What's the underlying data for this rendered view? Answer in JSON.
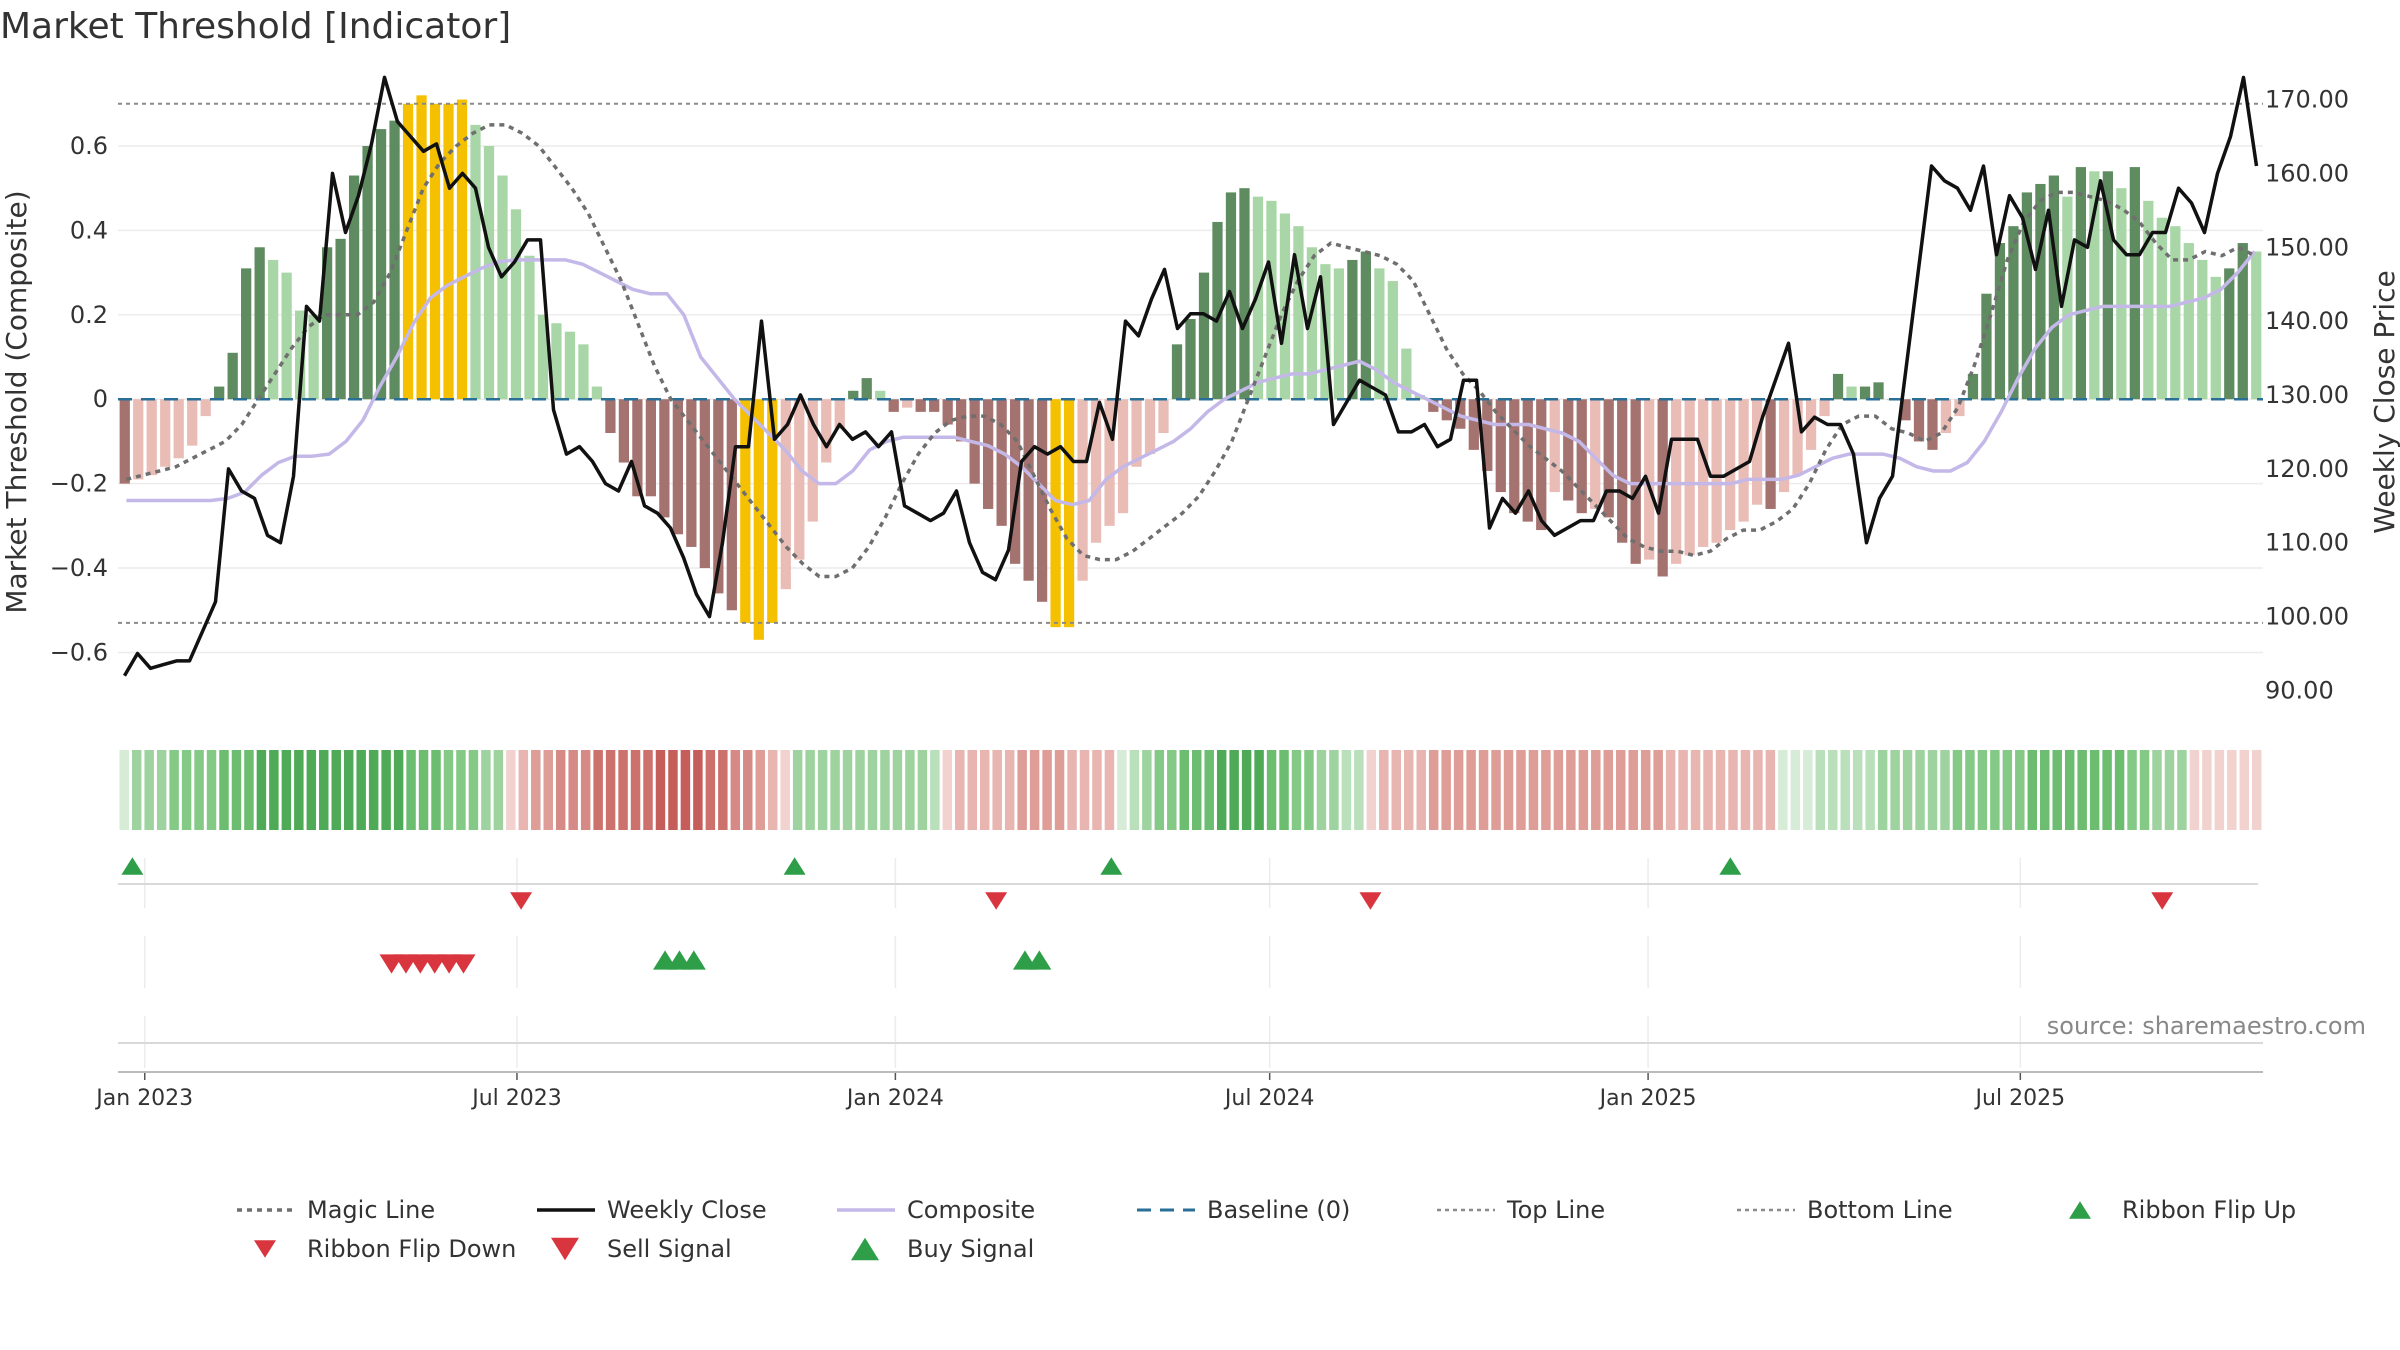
{
  "chart_data": {
    "type": "bar",
    "title": "Market Threshold [Indicator]",
    "ylabel_left": "Market Threshold (Composite)",
    "ylabel_right": "Weekly Close Price",
    "source": "source: sharemaestro.com",
    "ylim_left": [
      -0.76,
      0.78
    ],
    "ylim_right": [
      86,
      174
    ],
    "yticks_left": [
      {
        "v": 0.6,
        "label": "0.6"
      },
      {
        "v": 0.4,
        "label": "0.4"
      },
      {
        "v": 0.2,
        "label": "0.2"
      },
      {
        "v": 0,
        "label": "0"
      },
      {
        "v": -0.2,
        "label": "−0.2"
      },
      {
        "v": -0.4,
        "label": "−0.4"
      },
      {
        "v": -0.6,
        "label": "−0.6"
      }
    ],
    "yticks_right": [
      "90.00",
      "100.00",
      "110.00",
      "120.00",
      "130.00",
      "140.00",
      "150.00",
      "160.00",
      "170.00"
    ],
    "x_start": "2022-12-19",
    "x_end": "2025-10-27",
    "xticks": [
      {
        "date": "2023-01-01",
        "label": "Jan 2023"
      },
      {
        "date": "2023-07-01",
        "label": "Jul 2023"
      },
      {
        "date": "2024-01-01",
        "label": "Jan 2024"
      },
      {
        "date": "2024-07-01",
        "label": "Jul 2024"
      },
      {
        "date": "2025-01-01",
        "label": "Jan 2025"
      },
      {
        "date": "2025-07-01",
        "label": "Jul 2025"
      }
    ],
    "top_line": 0.7,
    "bottom_line": -0.53,
    "composite": [
      -0.24,
      -0.24,
      -0.24,
      -0.24,
      -0.24,
      -0.24,
      -0.235,
      -0.22,
      -0.18,
      -0.15,
      -0.135,
      -0.135,
      -0.13,
      -0.1,
      -0.05,
      0.03,
      0.1,
      0.18,
      0.24,
      0.27,
      0.29,
      0.31,
      0.325,
      0.33,
      0.33,
      0.33,
      0.33,
      0.32,
      0.3,
      0.28,
      0.26,
      0.25,
      0.25,
      0.2,
      0.1,
      0.05,
      0,
      -0.04,
      -0.08,
      -0.12,
      -0.17,
      -0.2,
      -0.2,
      -0.17,
      -0.12,
      -0.1,
      -0.09,
      -0.09,
      -0.09,
      -0.09,
      -0.1,
      -0.11,
      -0.13,
      -0.16,
      -0.2,
      -0.24,
      -0.25,
      -0.24,
      -0.19,
      -0.16,
      -0.14,
      -0.12,
      -0.1,
      -0.07,
      -0.03,
      0,
      0.02,
      0.04,
      0.05,
      0.06,
      0.06,
      0.07,
      0.08,
      0.09,
      0.07,
      0.04,
      0.02,
      0,
      -0.02,
      -0.04,
      -0.05,
      -0.06,
      -0.06,
      -0.06,
      -0.07,
      -0.08,
      -0.1,
      -0.14,
      -0.18,
      -0.2,
      -0.2,
      -0.2,
      -0.2,
      -0.2,
      -0.2,
      -0.2,
      -0.19,
      -0.19,
      -0.19,
      -0.18,
      -0.16,
      -0.14,
      -0.13,
      -0.13,
      -0.13,
      -0.14,
      -0.16,
      -0.17,
      -0.17,
      -0.15,
      -0.1,
      -0.03,
      0.05,
      0.12,
      0.17,
      0.2,
      0.21,
      0.22,
      0.22,
      0.22,
      0.22,
      0.22,
      0.23,
      0.24,
      0.26,
      0.3,
      0.35
    ],
    "close": [
      92,
      95,
      93,
      93.5,
      94,
      94,
      98,
      102,
      120,
      117,
      116,
      111,
      110,
      119,
      142,
      140,
      160,
      152,
      157,
      164,
      173,
      167,
      165,
      163,
      164,
      158,
      160,
      158,
      150,
      146,
      148,
      151,
      151,
      128,
      122,
      123,
      121,
      118,
      117,
      121,
      115,
      114,
      112,
      108,
      103,
      100,
      110,
      123,
      123,
      140,
      124,
      126,
      130,
      126,
      123,
      126,
      124,
      125,
      123,
      125,
      115,
      114,
      113,
      114,
      117,
      110,
      106,
      105,
      109,
      121,
      123,
      122,
      123,
      121,
      121,
      129,
      124,
      140,
      138,
      143,
      147,
      139,
      141,
      141,
      140,
      144,
      139,
      143,
      148,
      137,
      149,
      139,
      146,
      126,
      129,
      132,
      131,
      130,
      125,
      125,
      126,
      123,
      124,
      132,
      132,
      112,
      116,
      114,
      117,
      113,
      111,
      112,
      113,
      113,
      117,
      117,
      116,
      119,
      114,
      124,
      124,
      124,
      119,
      119,
      120,
      121,
      127,
      132,
      137,
      125,
      127,
      126,
      126,
      122,
      110,
      116,
      119,
      133,
      147,
      161,
      159,
      158,
      155,
      161,
      149,
      157,
      154,
      147,
      155,
      142,
      151,
      150,
      159,
      151,
      149,
      149,
      152,
      152,
      158,
      156,
      152,
      160,
      165,
      173,
      161
    ],
    "magic_line": [
      -0.19,
      -0.18,
      -0.17,
      -0.16,
      -0.14,
      -0.12,
      -0.1,
      -0.06,
      0,
      0.06,
      0.12,
      0.17,
      0.2,
      0.2,
      0.2,
      0.23,
      0.3,
      0.4,
      0.5,
      0.56,
      0.6,
      0.63,
      0.65,
      0.65,
      0.63,
      0.6,
      0.55,
      0.5,
      0.44,
      0.36,
      0.28,
      0.18,
      0.08,
      0,
      -0.05,
      -0.1,
      -0.15,
      -0.2,
      -0.25,
      -0.3,
      -0.35,
      -0.39,
      -0.42,
      -0.42,
      -0.4,
      -0.35,
      -0.28,
      -0.2,
      -0.13,
      -0.08,
      -0.05,
      -0.04,
      -0.04,
      -0.06,
      -0.1,
      -0.18,
      -0.26,
      -0.33,
      -0.37,
      -0.38,
      -0.38,
      -0.36,
      -0.33,
      -0.3,
      -0.27,
      -0.23,
      -0.17,
      -0.1,
      0,
      0.1,
      0.2,
      0.28,
      0.34,
      0.37,
      0.36,
      0.35,
      0.34,
      0.32,
      0.28,
      0.2,
      0.12,
      0.06,
      0.02,
      -0.03,
      -0.07,
      -0.11,
      -0.14,
      -0.17,
      -0.21,
      -0.25,
      -0.29,
      -0.33,
      -0.35,
      -0.36,
      -0.36,
      -0.37,
      -0.36,
      -0.33,
      -0.31,
      -0.31,
      -0.29,
      -0.26,
      -0.2,
      -0.12,
      -0.06,
      -0.04,
      -0.04,
      -0.07,
      -0.08,
      -0.1,
      -0.08,
      -0.02,
      0.08,
      0.2,
      0.33,
      0.42,
      0.47,
      0.49,
      0.49,
      0.48,
      0.47,
      0.45,
      0.42,
      0.37,
      0.33,
      0.33,
      0.35,
      0.34,
      0.36,
      0.34
    ],
    "bars": [
      -0.2,
      -0.19,
      -0.18,
      -0.16,
      -0.14,
      -0.11,
      -0.04,
      0.03,
      0.11,
      0.31,
      0.36,
      0.33,
      0.3,
      0.21,
      0.2,
      0.36,
      0.38,
      0.53,
      0.6,
      0.64,
      0.66,
      0.7,
      0.72,
      0.7,
      0.7,
      0.71,
      0.65,
      0.6,
      0.53,
      0.45,
      0.34,
      0.2,
      0.18,
      0.16,
      0.13,
      0.03,
      -0.08,
      -0.15,
      -0.23,
      -0.23,
      -0.28,
      -0.32,
      -0.35,
      -0.4,
      -0.46,
      -0.5,
      -0.53,
      -0.57,
      -0.53,
      -0.45,
      -0.38,
      -0.29,
      -0.15,
      -0.07,
      0.02,
      0.05,
      0.02,
      -0.03,
      -0.02,
      -0.03,
      -0.03,
      -0.06,
      -0.1,
      -0.2,
      -0.26,
      -0.3,
      -0.39,
      -0.43,
      -0.48,
      -0.54,
      -0.54,
      -0.43,
      -0.34,
      -0.3,
      -0.27,
      -0.16,
      -0.13,
      -0.08,
      0.13,
      0.19,
      0.3,
      0.42,
      0.49,
      0.5,
      0.48,
      0.47,
      0.44,
      0.41,
      0.36,
      0.32,
      0.31,
      0.33,
      0.35,
      0.31,
      0.28,
      0.12,
      0.01,
      -0.03,
      -0.05,
      -0.07,
      -0.12,
      -0.17,
      -0.22,
      -0.27,
      -0.29,
      -0.31,
      -0.22,
      -0.24,
      -0.27,
      -0.26,
      -0.28,
      -0.34,
      -0.39,
      -0.38,
      -0.42,
      -0.39,
      -0.37,
      -0.35,
      -0.34,
      -0.31,
      -0.29,
      -0.25,
      -0.26,
      -0.22,
      -0.18,
      -0.12,
      -0.04,
      0.06,
      0.03,
      0.03,
      0.04,
      0,
      -0.05,
      -0.1,
      -0.12,
      -0.08,
      -0.04,
      0.06,
      0.25,
      0.37,
      0.41,
      0.49,
      0.51,
      0.53,
      0.48,
      0.55,
      0.54,
      0.54,
      0.5,
      0.55,
      0.47,
      0.43,
      0.41,
      0.37,
      0.33,
      0.29,
      0.31,
      0.37,
      0.35
    ],
    "ribbon_levels": [
      1,
      3,
      3,
      3,
      4,
      4,
      4,
      4,
      5,
      5,
      5,
      6,
      6,
      6,
      6,
      6,
      6,
      6,
      6,
      6,
      6,
      6,
      6,
      5,
      5,
      5,
      4,
      4,
      4,
      3,
      3,
      -1,
      -2,
      -3,
      -3,
      -4,
      -4,
      -4,
      -5,
      -5,
      -5,
      -5,
      -5,
      -6,
      -6,
      -6,
      -6,
      -5,
      -5,
      -4,
      -4,
      -3,
      -2,
      -1,
      3,
      3,
      3,
      3,
      3,
      3,
      3,
      3,
      3,
      3,
      3,
      2,
      -1,
      -2,
      -2,
      -2,
      -2,
      -2,
      -3,
      -3,
      -3,
      -3,
      -2,
      -2,
      -2,
      -2,
      1,
      2,
      3,
      4,
      4,
      5,
      5,
      5,
      6,
      6,
      6,
      6,
      5,
      5,
      4,
      4,
      3,
      3,
      2,
      2,
      -1,
      -2,
      -2,
      -2,
      -2,
      -3,
      -3,
      -3,
      -3,
      -3,
      -3,
      -3,
      -3,
      -3,
      -3,
      -3,
      -3,
      -3,
      -3,
      -3,
      -3,
      -3,
      -3,
      -3,
      -2,
      -2,
      -2,
      -2,
      -2,
      -2,
      -2,
      -2,
      -2,
      1,
      1,
      1,
      2,
      2,
      2,
      2,
      2,
      3,
      3,
      3,
      3,
      3,
      3,
      4,
      4,
      4,
      4,
      4,
      4,
      5,
      5,
      5,
      5,
      5,
      5,
      5,
      5,
      4,
      4,
      3,
      3,
      3,
      -1,
      -1,
      -1,
      -1,
      -1,
      -1
    ],
    "ribbon_flip_up": [
      "2022-12-26",
      "2023-11-13",
      "2024-04-15",
      "2025-02-10"
    ],
    "ribbon_flip_down": [
      "2023-07-03",
      "2024-02-19",
      "2024-08-19",
      "2025-09-08"
    ],
    "sell_signals": [
      "2023-05-01",
      "2023-05-08",
      "2023-05-15",
      "2023-05-22",
      "2023-05-29",
      "2023-06-05"
    ],
    "buy_signals": [
      "2023-09-11",
      "2023-09-18",
      "2023-09-25",
      "2024-03-04",
      "2024-03-11"
    ],
    "legend": [
      {
        "key": "magic",
        "label": "Magic Line"
      },
      {
        "key": "close",
        "label": "Weekly Close"
      },
      {
        "key": "composite",
        "label": "Composite"
      },
      {
        "key": "baseline",
        "label": "Baseline (0)"
      },
      {
        "key": "top",
        "label": "Top Line"
      },
      {
        "key": "bottom",
        "label": "Bottom Line"
      },
      {
        "key": "flipup",
        "label": "Ribbon Flip Up"
      },
      {
        "key": "flipdown",
        "label": "Ribbon Flip Down"
      },
      {
        "key": "sell",
        "label": "Sell Signal"
      },
      {
        "key": "buy",
        "label": "Buy Signal"
      }
    ],
    "colors": {
      "pos_strong": "#5e8b5f",
      "pos_light": "#a9d6a7",
      "neg_strong": "#a5736f",
      "neg_light": "#eabcb6",
      "extreme": "#f5c000",
      "close": "#111111",
      "composite": "#c3b8e8",
      "magic": "#6f6f6f",
      "baseline": "#2a6f97",
      "guide": "#8a8a8a",
      "buy": "#2e9e48",
      "sell": "#d9353f",
      "ribbon_pos": [
        "#d6ecd7",
        "#b9e0bb",
        "#9ed39f",
        "#85c987",
        "#6cbd70",
        "#4faa58"
      ],
      "ribbon_neg": [
        "#f1d2cf",
        "#e8b5b1",
        "#df9d98",
        "#d68a85",
        "#cc716c",
        "#c55e5a"
      ]
    }
  }
}
